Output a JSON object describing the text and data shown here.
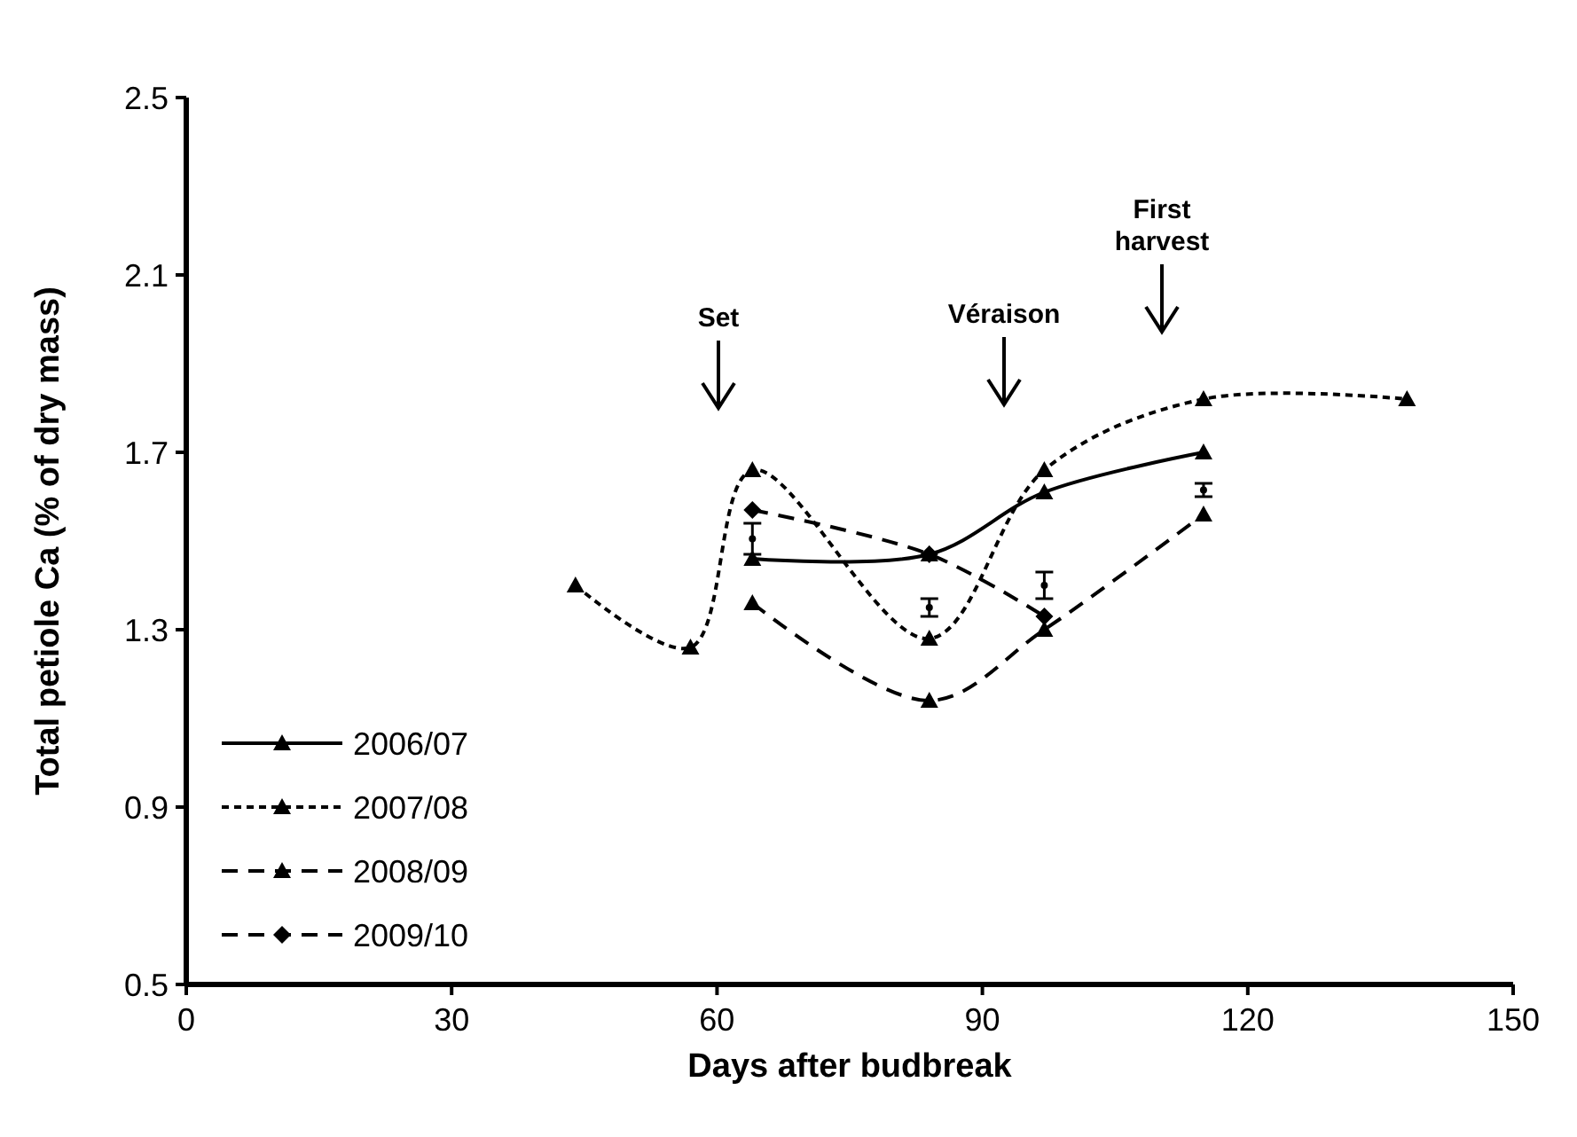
{
  "chart_data": {
    "type": "line",
    "xlabel": "Days after budbreak",
    "ylabel": "Total petiole Ca (% of dry mass)",
    "xlim": [
      0,
      150
    ],
    "xticks": [
      0,
      30,
      60,
      90,
      120,
      150
    ],
    "ylim": [
      0.5,
      2.5
    ],
    "yticks": [
      0.5,
      0.9,
      1.3,
      1.7,
      2.1,
      2.5
    ],
    "grid": false,
    "legend": "bottom left",
    "series": [
      {
        "name": "2006/07",
        "color": "#000000",
        "line_style": "solid",
        "marker": "triangle",
        "x": [
          64,
          84,
          97,
          115
        ],
        "values": [
          1.46,
          1.47,
          1.61,
          1.7
        ]
      },
      {
        "name": "2007/08",
        "color": "#000000",
        "line_style": "dotted",
        "marker": "triangle",
        "x": [
          44,
          57,
          64,
          84,
          97,
          115,
          138
        ],
        "values": [
          1.4,
          1.26,
          1.66,
          1.28,
          1.66,
          1.82,
          1.82
        ]
      },
      {
        "name": "2008/09",
        "color": "#000000",
        "line_style": "dashed",
        "marker": "triangle",
        "x": [
          64,
          84,
          97,
          115
        ],
        "values": [
          1.36,
          1.14,
          1.3,
          1.56
        ]
      },
      {
        "name": "2009/10",
        "color": "#000000",
        "line_style": "dashed",
        "marker": "diamond",
        "x": [
          64,
          84,
          97
        ],
        "values": [
          1.57,
          1.47,
          1.33
        ]
      },
      {
        "type": "scatter",
        "color": "#000000",
        "marker": "circle",
        "x": [
          64,
          84,
          97,
          115
        ],
        "values": [
          1.505,
          1.35,
          1.4,
          1.615
        ],
        "errors": [
          0.035,
          0.02,
          0.03,
          0.015
        ]
      }
    ],
    "annotations": [
      "Set",
      "Véraison",
      "First harvest"
    ]
  }
}
